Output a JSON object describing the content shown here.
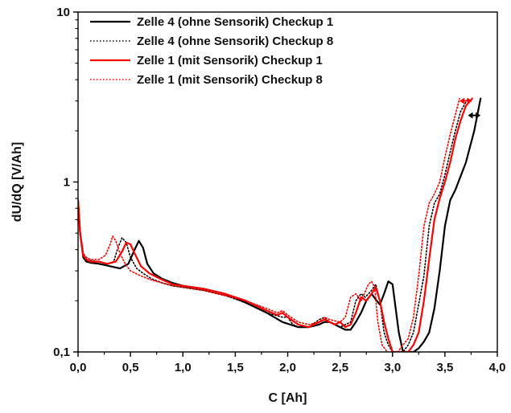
{
  "chart_data": {
    "type": "line",
    "xlabel": "C [Ah]",
    "ylabel": "dU/dQ [V/Ah]",
    "xlim": [
      0,
      4.0
    ],
    "ylim": [
      0.1,
      10
    ],
    "yscale": "log",
    "xticks": [
      "0,0",
      "0,5",
      "1,0",
      "1,5",
      "2,0",
      "2,5",
      "3,0",
      "3,5",
      "4,0"
    ],
    "yticks": [
      "0,1",
      "1",
      "10"
    ],
    "grid": false,
    "legend_position": "top-left",
    "colors": {
      "black": "#000000",
      "red": "#ff0000"
    },
    "series": [
      {
        "name": "Zelle 4 (ohne Sensorik) Checkup 1",
        "color": "#000000",
        "dash": "solid",
        "x": [
          0.0,
          0.02,
          0.05,
          0.08,
          0.12,
          0.2,
          0.3,
          0.4,
          0.48,
          0.54,
          0.58,
          0.62,
          0.66,
          0.72,
          0.8,
          0.9,
          1.0,
          1.2,
          1.4,
          1.6,
          1.8,
          1.95,
          2.1,
          2.2,
          2.3,
          2.35,
          2.4,
          2.45,
          2.5,
          2.55,
          2.6,
          2.65,
          2.7,
          2.75,
          2.8,
          2.85,
          2.88,
          2.92,
          2.96,
          3.0,
          3.03,
          3.06,
          3.1,
          3.15,
          3.2,
          3.25,
          3.3,
          3.35,
          3.4,
          3.45,
          3.5,
          3.55,
          3.6,
          3.7,
          3.78,
          3.84
        ],
        "y": [
          0.78,
          0.5,
          0.36,
          0.34,
          0.335,
          0.33,
          0.32,
          0.31,
          0.33,
          0.4,
          0.45,
          0.41,
          0.33,
          0.29,
          0.27,
          0.255,
          0.245,
          0.235,
          0.22,
          0.195,
          0.17,
          0.15,
          0.14,
          0.14,
          0.145,
          0.15,
          0.15,
          0.145,
          0.14,
          0.135,
          0.135,
          0.15,
          0.17,
          0.2,
          0.22,
          0.2,
          0.19,
          0.22,
          0.26,
          0.25,
          0.18,
          0.13,
          0.1,
          0.1,
          0.1,
          0.105,
          0.115,
          0.13,
          0.18,
          0.3,
          0.55,
          0.78,
          0.9,
          1.3,
          2.0,
          3.1
        ]
      },
      {
        "name": "Zelle 4 (ohne Sensorik) Checkup 8",
        "color": "#000000",
        "dash": "dotted",
        "x": [
          0.0,
          0.02,
          0.05,
          0.08,
          0.12,
          0.2,
          0.28,
          0.34,
          0.38,
          0.42,
          0.46,
          0.5,
          0.56,
          0.62,
          0.7,
          0.8,
          0.9,
          1.0,
          1.2,
          1.4,
          1.6,
          1.8,
          1.95,
          2.0,
          2.05,
          2.1,
          2.2,
          2.3,
          2.35,
          2.4,
          2.5,
          2.6,
          2.65,
          2.7,
          2.74,
          2.8,
          2.84,
          2.88,
          2.92,
          2.96,
          3.0,
          3.05,
          3.1,
          3.15,
          3.2,
          3.3,
          3.35,
          3.4,
          3.45,
          3.5,
          3.55,
          3.6,
          3.65,
          3.72
        ],
        "y": [
          0.78,
          0.5,
          0.37,
          0.35,
          0.345,
          0.34,
          0.33,
          0.34,
          0.41,
          0.47,
          0.44,
          0.36,
          0.31,
          0.29,
          0.27,
          0.255,
          0.245,
          0.24,
          0.23,
          0.215,
          0.195,
          0.17,
          0.16,
          0.16,
          0.145,
          0.14,
          0.14,
          0.155,
          0.16,
          0.15,
          0.14,
          0.15,
          0.2,
          0.22,
          0.21,
          0.23,
          0.25,
          0.2,
          0.13,
          0.11,
          0.1,
          0.1,
          0.1,
          0.11,
          0.13,
          0.28,
          0.55,
          0.75,
          0.85,
          1.1,
          1.5,
          2.0,
          2.6,
          3.1
        ]
      },
      {
        "name": "Zelle 1 (mit Sensorik) Checkup 1",
        "color": "#ff0000",
        "dash": "solid",
        "x": [
          0.0,
          0.02,
          0.05,
          0.08,
          0.12,
          0.2,
          0.28,
          0.36,
          0.42,
          0.46,
          0.5,
          0.54,
          0.6,
          0.68,
          0.78,
          0.9,
          1.0,
          1.2,
          1.4,
          1.6,
          1.8,
          1.9,
          1.95,
          2.0,
          2.1,
          2.2,
          2.3,
          2.35,
          2.4,
          2.45,
          2.5,
          2.55,
          2.6,
          2.65,
          2.7,
          2.75,
          2.8,
          2.84,
          2.88,
          2.92,
          2.96,
          3.0,
          3.04,
          3.08,
          3.12,
          3.15,
          3.2,
          3.25,
          3.3,
          3.35,
          3.4,
          3.45,
          3.5,
          3.55,
          3.6,
          3.65,
          3.7,
          3.76
        ],
        "y": [
          0.78,
          0.5,
          0.37,
          0.35,
          0.34,
          0.34,
          0.33,
          0.34,
          0.39,
          0.44,
          0.43,
          0.38,
          0.32,
          0.29,
          0.27,
          0.25,
          0.245,
          0.235,
          0.22,
          0.2,
          0.175,
          0.165,
          0.17,
          0.16,
          0.145,
          0.14,
          0.15,
          0.155,
          0.15,
          0.145,
          0.15,
          0.14,
          0.145,
          0.17,
          0.21,
          0.2,
          0.22,
          0.24,
          0.2,
          0.15,
          0.12,
          0.1,
          0.1,
          0.1,
          0.1,
          0.1,
          0.11,
          0.13,
          0.2,
          0.35,
          0.6,
          0.8,
          1.0,
          1.3,
          1.8,
          2.3,
          2.8,
          3.1
        ]
      },
      {
        "name": "Zelle 1 (mit Sensorik) Checkup 8",
        "color": "#ff0000",
        "dash": "dotted",
        "x": [
          0.0,
          0.02,
          0.05,
          0.08,
          0.12,
          0.2,
          0.26,
          0.3,
          0.33,
          0.36,
          0.4,
          0.45,
          0.5,
          0.6,
          0.7,
          0.8,
          0.9,
          1.0,
          1.2,
          1.4,
          1.6,
          1.8,
          1.9,
          1.95,
          2.0,
          2.1,
          2.2,
          2.3,
          2.35,
          2.4,
          2.5,
          2.55,
          2.6,
          2.65,
          2.7,
          2.73,
          2.77,
          2.8,
          2.83,
          2.86,
          2.9,
          2.95,
          3.0,
          3.05,
          3.1,
          3.15,
          3.2,
          3.25,
          3.3,
          3.35,
          3.4,
          3.45,
          3.5,
          3.55,
          3.6,
          3.64
        ],
        "y": [
          0.78,
          0.5,
          0.38,
          0.36,
          0.35,
          0.35,
          0.37,
          0.42,
          0.48,
          0.45,
          0.38,
          0.33,
          0.3,
          0.28,
          0.265,
          0.255,
          0.245,
          0.24,
          0.23,
          0.215,
          0.2,
          0.18,
          0.17,
          0.175,
          0.165,
          0.15,
          0.145,
          0.15,
          0.16,
          0.155,
          0.15,
          0.16,
          0.21,
          0.22,
          0.2,
          0.22,
          0.25,
          0.26,
          0.24,
          0.15,
          0.11,
          0.1,
          0.1,
          0.1,
          0.11,
          0.12,
          0.16,
          0.28,
          0.55,
          0.75,
          0.85,
          1.0,
          1.4,
          1.9,
          2.5,
          3.1
        ]
      }
    ]
  }
}
